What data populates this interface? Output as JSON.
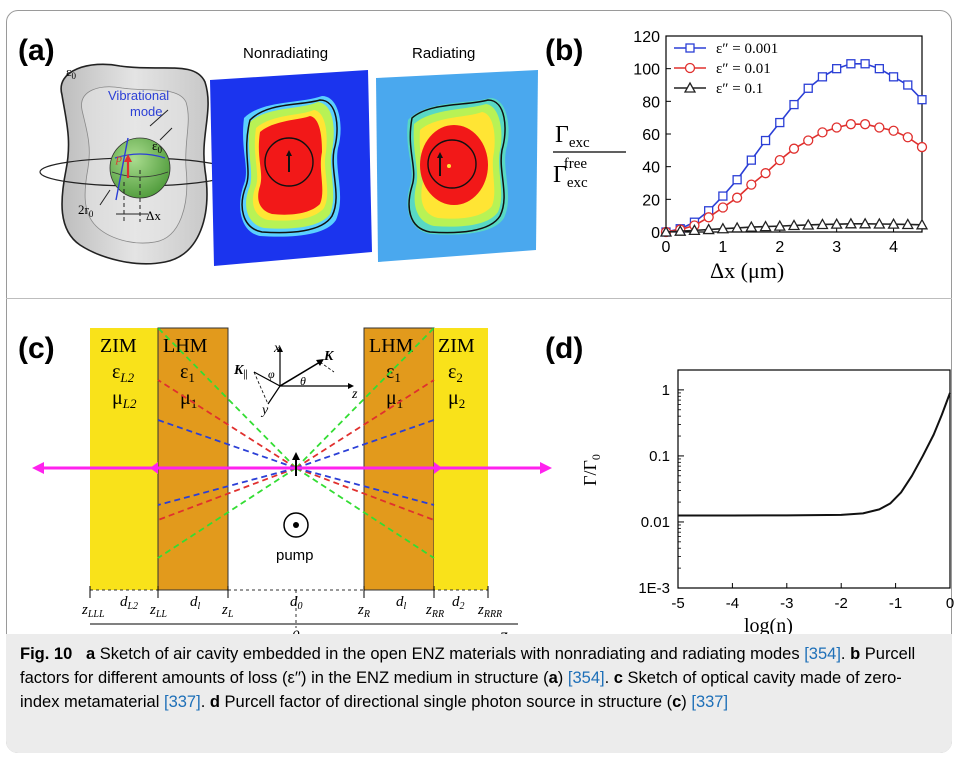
{
  "panel_a": {
    "label": "(a)",
    "epsilon0_outer": "ε",
    "epsilon0_outer_sub": "0",
    "vibrational_mode_line1": "Vibrational",
    "vibrational_mode_line2": "mode",
    "p_label": "p",
    "epsilon0_inner": "ε",
    "epsilon0_inner_sub": "0",
    "radius_label": "2r",
    "radius_sub": "0",
    "dx_label": "Δx",
    "nonradiating_label": "Nonradiating",
    "radiating_label": "Radiating"
  },
  "panel_b": {
    "label": "(b)",
    "ylabel_num": "Γ",
    "ylabel_num_sub": "exc",
    "ylabel_den": "Γ",
    "ylabel_den_sub": "exc",
    "ylabel_den_sup": "free",
    "xlabel": "Δx (μm)"
  },
  "panel_c": {
    "label": "(c)",
    "zim_left": "ZIM",
    "eps_L2": "ε",
    "eps_L2_sub": "L2",
    "mu_L2": "μ",
    "mu_L2_sub": "L2",
    "lhm_left": "LHM",
    "eps_1_left": "ε",
    "eps_1_left_sub": "1",
    "mu_1_left": "μ",
    "mu_1_left_sub": "1",
    "lhm_right": "LHM",
    "eps_1_right": "ε",
    "eps_1_right_sub": "1",
    "mu_1_right": "μ",
    "mu_1_right_sub": "1",
    "zim_right": "ZIM",
    "eps_2": "ε",
    "eps_2_sub": "2",
    "mu_2": "μ",
    "mu_2_sub": "2",
    "axis_x": "x",
    "axis_y": "y",
    "axis_z": "z",
    "k_parallel": "K",
    "k_parallel_sub": "||",
    "k_vec": "K",
    "phi": "φ",
    "theta": "θ",
    "pump": "pump",
    "z_LLL": "z",
    "z_LLL_sub": "LLL",
    "d_L2": "d",
    "d_L2_sub": "L2",
    "z_LL": "z",
    "z_LL_sub": "LL",
    "d_l_left": "d",
    "d_l_left_sub": "l",
    "z_L": "z",
    "z_L_sub": "L",
    "d_0": "d",
    "d_0_sub": "0",
    "z_R": "z",
    "z_R_sub": "R",
    "d_l_right": "d",
    "d_l_right_sub": "l",
    "z_RR": "z",
    "z_RR_sub": "RR",
    "d_2": "d",
    "d_2_sub": "2",
    "z_RRR": "z",
    "z_RRR_sub": "RRR",
    "origin": "0",
    "z_axis": "z"
  },
  "panel_d": {
    "label": "(d)",
    "ylabel": "Γ/Γ",
    "ylabel_sub": "0",
    "xlabel": "log(n)"
  },
  "caption": {
    "fig_label": "Fig. 10",
    "a": "a",
    "text_a": " Sketch of air cavity embedded in the open ENZ materials with nonradiating and radiating modes ",
    "ref_a": "[354]",
    "sep_b": ". ",
    "b": "b",
    "text_b": " Purcell factors for different amounts of loss (ε′′) in the ENZ medium in structure (",
    "b_a": "a",
    "text_b_end": ") ",
    "ref_b": "[354]",
    "sep_c": ". ",
    "c": "c",
    "text_c": " Sketch of optical cavity made of zero-index metamaterial ",
    "ref_c": "[337]",
    "sep_d": ". ",
    "d": "d",
    "text_d": " Purcell factor of directional single photon source in structure (",
    "d_c": "c",
    "text_d_end": ") ",
    "ref_d": "[337]"
  },
  "colors": {
    "series_blue": "#2b3fd6",
    "series_red": "#e0302e",
    "series_black": "#222222",
    "zim_yellow": "#f9e21a",
    "lhm_orange": "#e29a1c",
    "magenta": "#ff22ee",
    "link": "#1d6fb8"
  },
  "chart_data": [
    {
      "type": "line",
      "panel": "b",
      "xlabel": "Δx (μm)",
      "ylabel": "Γexc / Γexc free",
      "xlim": [
        0,
        4.5
      ],
      "ylim": [
        0,
        120
      ],
      "xticks": [
        "0",
        "1",
        "2",
        "3",
        "4"
      ],
      "yticks": [
        "0",
        "20",
        "40",
        "60",
        "80",
        "100",
        "120"
      ],
      "legend_position": "top-left",
      "x": [
        0,
        0.25,
        0.5,
        0.75,
        1.0,
        1.25,
        1.5,
        1.75,
        2.0,
        2.25,
        2.5,
        2.75,
        3.0,
        3.25,
        3.5,
        3.75,
        4.0,
        4.25,
        4.5
      ],
      "series": [
        {
          "name": "ε″ = 0.001",
          "marker": "square",
          "color": "#2b3fd6",
          "values": [
            0,
            2,
            6,
            13,
            22,
            32,
            44,
            56,
            67,
            78,
            88,
            95,
            100,
            103,
            103,
            100,
            95,
            90,
            81
          ]
        },
        {
          "name": "ε″ = 0.01",
          "marker": "circle",
          "color": "#e0302e",
          "values": [
            0,
            1.5,
            4,
            9,
            15,
            21,
            29,
            36,
            44,
            51,
            56,
            61,
            64,
            66,
            66,
            64,
            62,
            58,
            52
          ]
        },
        {
          "name": "ε″ = 0.1",
          "marker": "triangle",
          "color": "#222222",
          "values": [
            0,
            0.5,
            1,
            1.5,
            2,
            2.5,
            3,
            3.3,
            3.6,
            4,
            4.3,
            4.6,
            4.8,
            5,
            5,
            4.9,
            4.8,
            4.6,
            4.4
          ]
        }
      ]
    },
    {
      "type": "line",
      "panel": "d",
      "xlabel": "log(n)",
      "ylabel": "Γ/Γ0",
      "xlim": [
        -5,
        0
      ],
      "ylim": [
        0.001,
        2
      ],
      "yscale": "log",
      "xticks": [
        "-5",
        "-4",
        "-3",
        "-2",
        "-1",
        "0"
      ],
      "yticks": [
        "1E-3",
        "0.01",
        "0.1",
        "1"
      ],
      "x": [
        -5,
        -4,
        -3,
        -2,
        -1.6,
        -1.3,
        -1.1,
        -0.9,
        -0.7,
        -0.5,
        -0.3,
        -0.15,
        0
      ],
      "series": [
        {
          "values": [
            0.0125,
            0.0125,
            0.0126,
            0.0128,
            0.0135,
            0.0155,
            0.019,
            0.028,
            0.05,
            0.1,
            0.21,
            0.42,
            0.9
          ]
        }
      ]
    }
  ]
}
